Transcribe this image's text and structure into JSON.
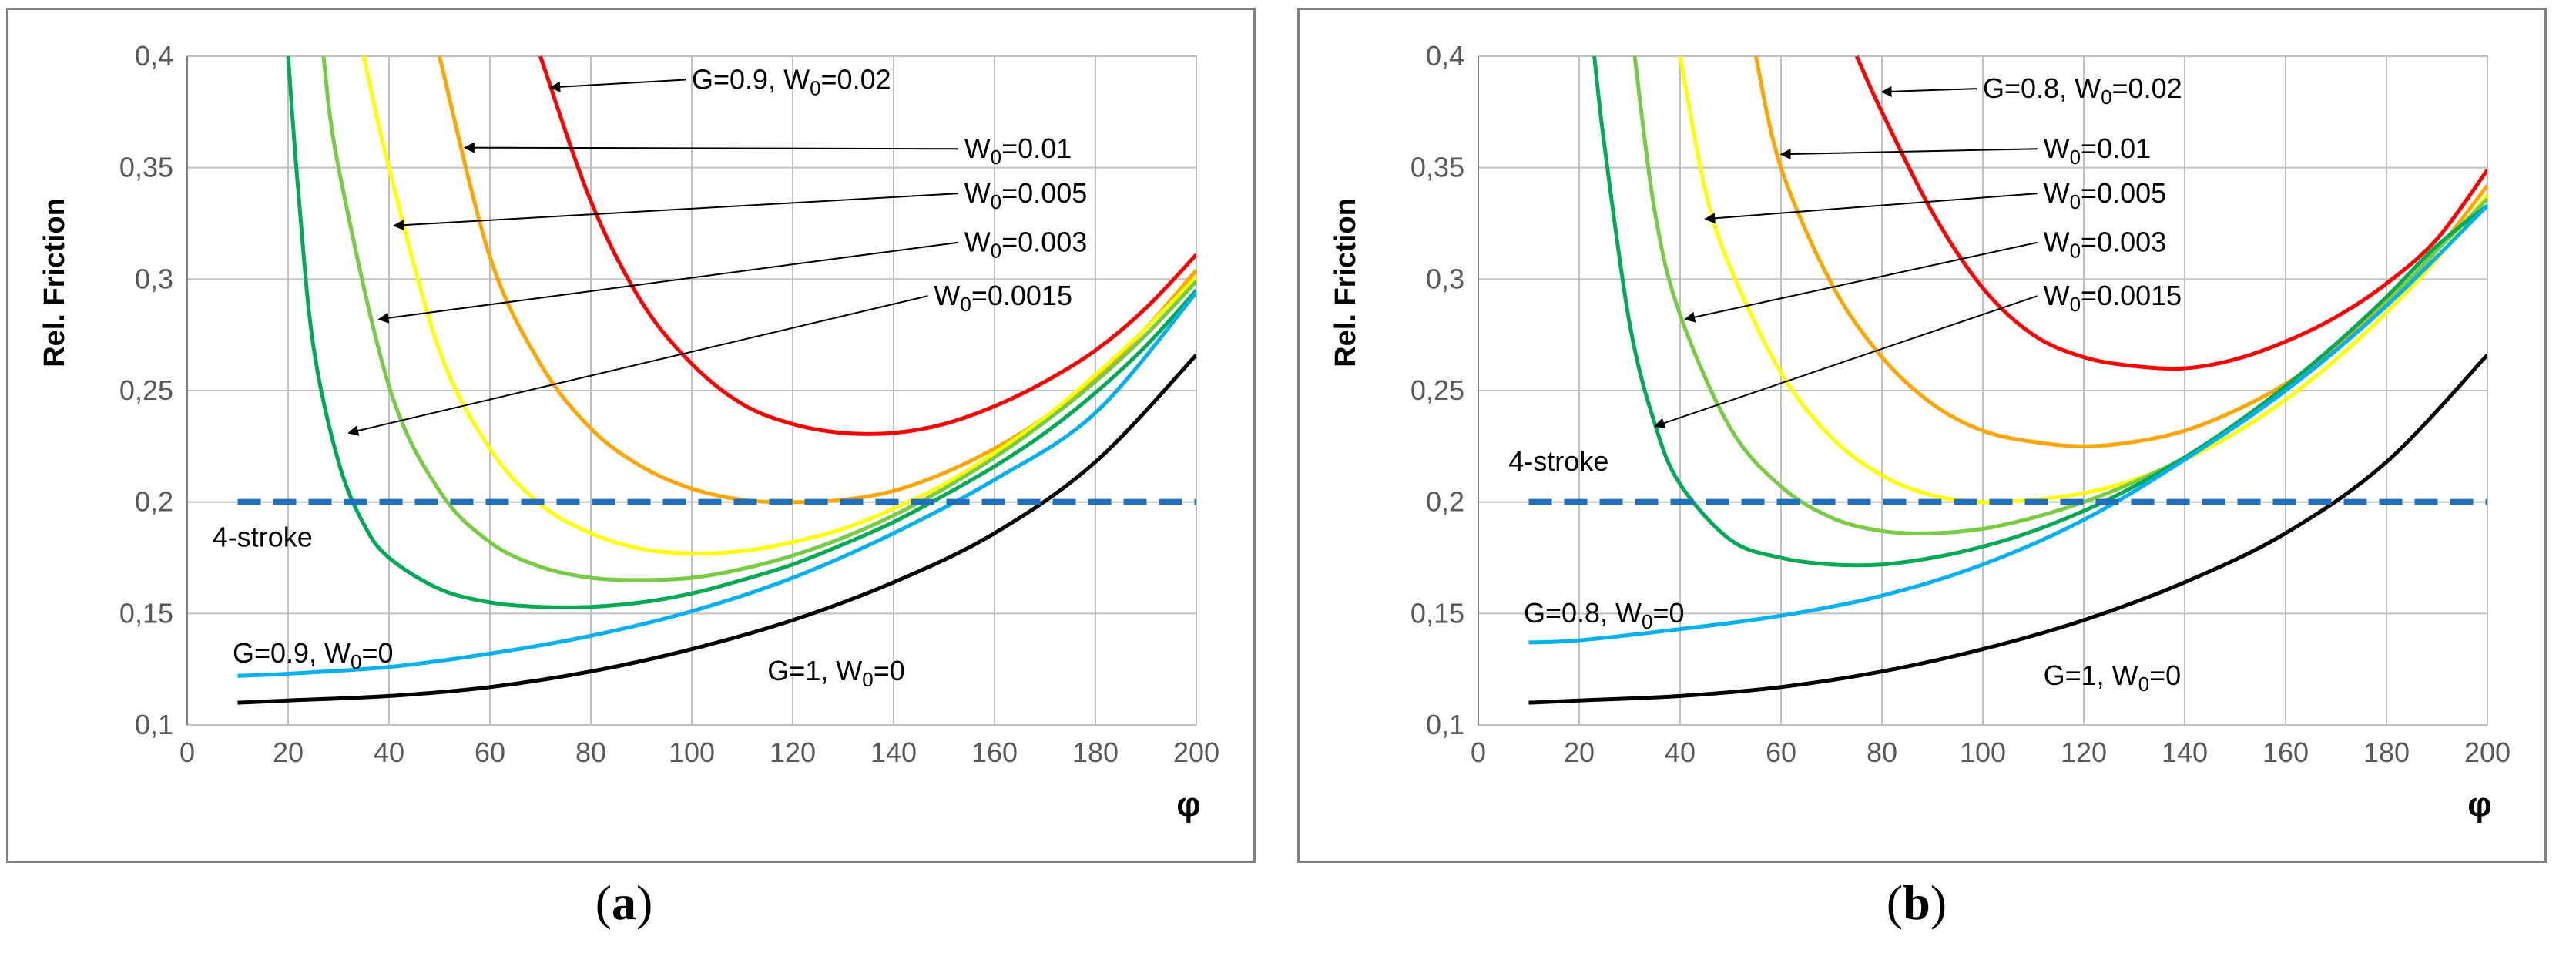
{
  "colors": {
    "red": "#ff0000",
    "orange": "#ffa500",
    "yellow": "#ffff00",
    "lightgreen": "#77cc44",
    "green": "#00aa55",
    "cyan": "#00b0f0",
    "black": "#000000",
    "dashed": "#1f6fbf",
    "grid": "#bfbfbf"
  },
  "captions": {
    "a_letter": "a",
    "b_letter": "b",
    "open": "(",
    "close": ")"
  },
  "chart_data": [
    {
      "id": "a",
      "type": "line",
      "ylabel": "Rel. Friction",
      "xlabel": "φ",
      "xlim": [
        0,
        200
      ],
      "ylim": [
        0.1,
        0.4
      ],
      "xticks": [
        0,
        20,
        40,
        60,
        80,
        100,
        120,
        140,
        160,
        180,
        200
      ],
      "xtick_labels": [
        "0",
        "20",
        "40",
        "60",
        "80",
        "100",
        "120",
        "140",
        "160",
        "180",
        "200"
      ],
      "yticks": [
        0.1,
        0.15,
        0.2,
        0.25,
        0.3,
        0.35,
        0.4
      ],
      "ytick_labels": [
        "0,1",
        "0,15",
        "0,2",
        "0,25",
        "0,3",
        "0,35",
        "0,4"
      ],
      "grid": true,
      "series": [
        {
          "name": "G=0.9, W0=0.02",
          "color": "red",
          "x": [
            70,
            80,
            90,
            100,
            110,
            120,
            130,
            140,
            150,
            160,
            170,
            180,
            190,
            200
          ],
          "y": [
            0.4,
            0.335,
            0.29,
            0.262,
            0.244,
            0.235,
            0.231,
            0.231,
            0.235,
            0.243,
            0.254,
            0.268,
            0.287,
            0.311
          ]
        },
        {
          "name": "W0=0.01",
          "color": "orange",
          "x": [
            50,
            60,
            70,
            80,
            90,
            100,
            110,
            120,
            130,
            140,
            150,
            160,
            170,
            180,
            190,
            200
          ],
          "y": [
            0.4,
            0.31,
            0.262,
            0.233,
            0.216,
            0.206,
            0.201,
            0.2,
            0.201,
            0.205,
            0.213,
            0.224,
            0.238,
            0.256,
            0.278,
            0.304
          ]
        },
        {
          "name": "W0=0.005",
          "color": "yellow",
          "x": [
            35,
            40,
            50,
            60,
            70,
            80,
            90,
            100,
            110,
            120,
            130,
            140,
            150,
            160,
            170,
            180,
            190,
            200
          ],
          "y": [
            0.4,
            0.35,
            0.268,
            0.224,
            0.199,
            0.186,
            0.179,
            0.177,
            0.178,
            0.182,
            0.188,
            0.197,
            0.208,
            0.222,
            0.238,
            0.257,
            0.278,
            0.301
          ]
        },
        {
          "name": "W0=0.003",
          "color": "lightgreen",
          "x": [
            27,
            30,
            40,
            50,
            60,
            70,
            80,
            90,
            100,
            110,
            120,
            130,
            140,
            150,
            160,
            170,
            180,
            190,
            200
          ],
          "y": [
            0.4,
            0.35,
            0.252,
            0.205,
            0.182,
            0.171,
            0.166,
            0.165,
            0.166,
            0.17,
            0.176,
            0.184,
            0.194,
            0.206,
            0.22,
            0.236,
            0.254,
            0.275,
            0.299
          ]
        },
        {
          "name": "W0=0.0015",
          "color": "green",
          "x": [
            20,
            22,
            25,
            30,
            35,
            40,
            50,
            60,
            70,
            80,
            90,
            100,
            110,
            120,
            130,
            140,
            150,
            160,
            170,
            180,
            190,
            200
          ],
          "y": [
            0.4,
            0.34,
            0.27,
            0.218,
            0.19,
            0.175,
            0.161,
            0.155,
            0.153,
            0.153,
            0.155,
            0.159,
            0.165,
            0.172,
            0.181,
            0.191,
            0.203,
            0.216,
            0.231,
            0.249,
            0.27,
            0.295
          ]
        },
        {
          "name": "G=0.9, W0=0",
          "color": "cyan",
          "x": [
            10,
            20,
            40,
            60,
            80,
            100,
            120,
            140,
            160,
            180,
            200
          ],
          "y": [
            0.122,
            0.123,
            0.126,
            0.132,
            0.14,
            0.151,
            0.166,
            0.186,
            0.21,
            0.24,
            0.294
          ]
        },
        {
          "name": "G=1, W0=0",
          "color": "black",
          "x": [
            10,
            20,
            40,
            60,
            80,
            100,
            120,
            140,
            160,
            180,
            200
          ],
          "y": [
            0.11,
            0.111,
            0.113,
            0.117,
            0.124,
            0.134,
            0.147,
            0.164,
            0.186,
            0.218,
            0.266
          ]
        },
        {
          "name": "4-stroke",
          "color": "dashed",
          "dashed": true,
          "x": [
            10,
            200
          ],
          "y": [
            0.2,
            0.2
          ]
        }
      ],
      "annotations": [
        {
          "label_main": "G=0.9, W",
          "label_sub": "0",
          "label_rest": "=0.02",
          "tx": 100,
          "ty": 0.386,
          "ax": 72,
          "ay": 0.386
        },
        {
          "label_main": "W",
          "label_sub": "0",
          "label_rest": "=0.01",
          "tx": 154,
          "ty": 0.355,
          "ax": 55,
          "ay": 0.359
        },
        {
          "label_main": "W",
          "label_sub": "0",
          "label_rest": "=0.005",
          "tx": 154,
          "ty": 0.335,
          "ax": 41,
          "ay": 0.324
        },
        {
          "label_main": "W",
          "label_sub": "0",
          "label_rest": "=0.003",
          "tx": 154,
          "ty": 0.313,
          "ax": 38,
          "ay": 0.282
        },
        {
          "label_main": "W",
          "label_sub": "0",
          "label_rest": "=0.0015",
          "tx": 148,
          "ty": 0.289,
          "ax": 32,
          "ay": 0.231
        }
      ],
      "labels": [
        {
          "main": "4-stroke",
          "sub": "",
          "rest": "",
          "x": 5,
          "y": 0.18
        },
        {
          "main": "G=0.9, W",
          "sub": "0",
          "rest": "=0",
          "x": 9,
          "y": 0.128
        },
        {
          "main": "G=1, W",
          "sub": "0",
          "rest": "=0",
          "x": 115,
          "y": 0.12
        }
      ]
    },
    {
      "id": "b",
      "type": "line",
      "ylabel": "Rel. Friction",
      "xlabel": "φ",
      "xlim": [
        0,
        200
      ],
      "ylim": [
        0.1,
        0.4
      ],
      "xticks": [
        0,
        20,
        40,
        60,
        80,
        100,
        120,
        140,
        160,
        180,
        200
      ],
      "xtick_labels": [
        "0",
        "20",
        "40",
        "60",
        "80",
        "100",
        "120",
        "140",
        "160",
        "180",
        "200"
      ],
      "yticks": [
        0.1,
        0.15,
        0.2,
        0.25,
        0.3,
        0.35,
        0.4
      ],
      "ytick_labels": [
        "0,1",
        "0,15",
        "0,2",
        "0,25",
        "0,3",
        "0,35",
        "0,4"
      ],
      "grid": true,
      "series": [
        {
          "name": "G=0.8, W0=0.02",
          "color": "red",
          "x": [
            75,
            80,
            90,
            100,
            110,
            120,
            130,
            140,
            150,
            160,
            170,
            180,
            190,
            200
          ],
          "y": [
            0.4,
            0.375,
            0.33,
            0.296,
            0.275,
            0.265,
            0.261,
            0.26,
            0.264,
            0.272,
            0.283,
            0.298,
            0.318,
            0.349
          ]
        },
        {
          "name": "W0=0.01",
          "color": "orange",
          "x": [
            55,
            60,
            70,
            80,
            90,
            100,
            110,
            120,
            130,
            140,
            150,
            160,
            170,
            180,
            190,
            200
          ],
          "y": [
            0.4,
            0.35,
            0.298,
            0.265,
            0.244,
            0.232,
            0.227,
            0.225,
            0.227,
            0.232,
            0.241,
            0.253,
            0.269,
            0.29,
            0.313,
            0.342
          ]
        },
        {
          "name": "W0=0.005",
          "color": "yellow",
          "x": [
            40,
            45,
            50,
            60,
            70,
            80,
            90,
            100,
            110,
            120,
            130,
            140,
            150,
            160,
            170,
            180,
            190,
            200
          ],
          "y": [
            0.4,
            0.34,
            0.305,
            0.258,
            0.229,
            0.212,
            0.203,
            0.2,
            0.201,
            0.204,
            0.21,
            0.219,
            0.231,
            0.246,
            0.264,
            0.285,
            0.309,
            0.338
          ]
        },
        {
          "name": "W0=0.003",
          "color": "lightgreen",
          "x": [
            31,
            35,
            40,
            50,
            60,
            70,
            80,
            90,
            100,
            110,
            120,
            130,
            140,
            150,
            160,
            170,
            180,
            190,
            200
          ],
          "y": [
            0.4,
            0.33,
            0.284,
            0.233,
            0.207,
            0.193,
            0.187,
            0.186,
            0.188,
            0.193,
            0.2,
            0.209,
            0.22,
            0.234,
            0.25,
            0.268,
            0.289,
            0.313,
            0.336
          ]
        },
        {
          "name": "W0=0.0015",
          "color": "green",
          "x": [
            23,
            25,
            30,
            35,
            40,
            50,
            60,
            70,
            80,
            90,
            100,
            110,
            120,
            130,
            140,
            150,
            160,
            170,
            180,
            190,
            200
          ],
          "y": [
            0.4,
            0.36,
            0.28,
            0.235,
            0.208,
            0.183,
            0.175,
            0.172,
            0.172,
            0.175,
            0.18,
            0.187,
            0.196,
            0.207,
            0.22,
            0.235,
            0.252,
            0.271,
            0.292,
            0.315,
            0.333
          ]
        },
        {
          "name": "G=0.8, W0=0",
          "color": "cyan",
          "x": [
            10,
            20,
            40,
            60,
            80,
            100,
            120,
            140,
            160,
            180,
            200
          ],
          "y": [
            0.137,
            0.138,
            0.143,
            0.149,
            0.158,
            0.172,
            0.192,
            0.219,
            0.25,
            0.288,
            0.333
          ]
        },
        {
          "name": "G=1, W0=0",
          "color": "black",
          "x": [
            10,
            20,
            40,
            60,
            80,
            100,
            120,
            140,
            160,
            180,
            200
          ],
          "y": [
            0.11,
            0.111,
            0.113,
            0.117,
            0.124,
            0.134,
            0.147,
            0.164,
            0.186,
            0.218,
            0.266
          ]
        },
        {
          "name": "4-stroke",
          "color": "dashed",
          "dashed": true,
          "x": [
            10,
            200
          ],
          "y": [
            0.2,
            0.2
          ]
        }
      ],
      "annotations": [
        {
          "label_main": "G=0.8, W",
          "label_sub": "0",
          "label_rest": "=0.02",
          "tx": 100,
          "ty": 0.382,
          "ax": 80,
          "ay": 0.384
        },
        {
          "label_main": "W",
          "label_sub": "0",
          "label_rest": "=0.01",
          "tx": 112,
          "ty": 0.355,
          "ax": 60,
          "ay": 0.356
        },
        {
          "label_main": "W",
          "label_sub": "0",
          "label_rest": "=0.005",
          "tx": 112,
          "ty": 0.335,
          "ax": 45,
          "ay": 0.327
        },
        {
          "label_main": "W",
          "label_sub": "0",
          "label_rest": "=0.003",
          "tx": 112,
          "ty": 0.313,
          "ax": 41,
          "ay": 0.282
        },
        {
          "label_main": "W",
          "label_sub": "0",
          "label_rest": "=0.0015",
          "tx": 112,
          "ty": 0.289,
          "ax": 35,
          "ay": 0.234
        }
      ],
      "labels": [
        {
          "main": "4-stroke",
          "sub": "",
          "rest": "",
          "x": 6,
          "y": 0.214
        },
        {
          "main": "G=0.8, W",
          "sub": "0",
          "rest": "=0",
          "x": 9,
          "y": 0.146
        },
        {
          "main": "G=1, W",
          "sub": "0",
          "rest": "=0",
          "x": 112,
          "y": 0.118
        }
      ]
    }
  ]
}
